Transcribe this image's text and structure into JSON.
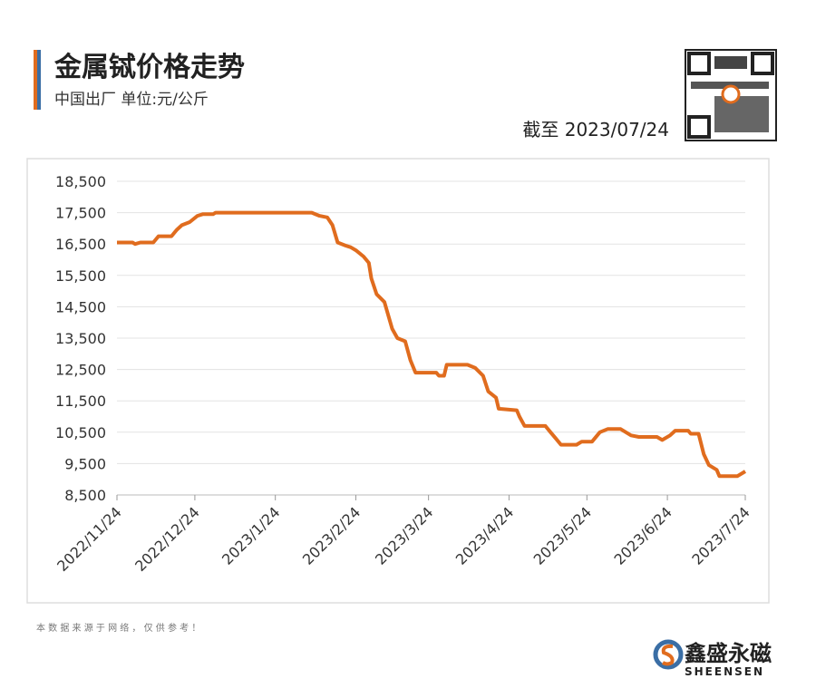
{
  "header": {
    "title": "金属铽价格走势",
    "subtitle": "中国出厂  单位:元/公斤",
    "as_of": "截至 2023/07/24"
  },
  "chart_data": {
    "type": "line",
    "x": [
      "2022/11/24",
      "2022/11/30",
      "2022/12/1",
      "2022/12/3",
      "2022/12/8",
      "2022/12/10",
      "2022/12/15",
      "2022/12/17",
      "2022/12/19",
      "2022/12/22",
      "2022/12/25",
      "2022/12/27",
      "2022/12/31",
      "2023/1/1",
      "2023/2/7",
      "2023/2/10",
      "2023/2/13",
      "2023/2/15",
      "2023/2/17",
      "2023/2/20",
      "2023/2/22",
      "2023/2/24",
      "2023/2/27",
      "2023/3/1",
      "2023/3/2",
      "2023/3/4",
      "2023/3/7",
      "2023/3/10",
      "2023/3/12",
      "2023/3/15",
      "2023/3/17",
      "2023/3/19",
      "2023/3/27",
      "2023/3/28",
      "2023/3/30",
      "2023/3/31",
      "2023/4/8",
      "2023/4/11",
      "2023/4/14",
      "2023/4/16",
      "2023/4/19",
      "2023/4/20",
      "2023/4/27",
      "2023/4/28",
      "2023/4/30",
      "2023/5/8",
      "2023/5/10",
      "2023/5/12",
      "2023/5/14",
      "2023/5/20",
      "2023/5/22",
      "2023/5/26",
      "2023/5/29",
      "2023/6/1",
      "2023/6/6",
      "2023/6/10",
      "2023/6/13",
      "2023/6/20",
      "2023/6/22",
      "2023/6/25",
      "2023/6/27",
      "2023/7/2",
      "2023/7/3",
      "2023/7/6",
      "2023/7/8",
      "2023/7/10",
      "2023/7/13",
      "2023/7/14",
      "2023/7/21",
      "2023/7/24"
    ],
    "series": [
      {
        "name": "金属铽",
        "color": "#e06c1e",
        "values": [
          16550,
          16550,
          16500,
          16550,
          16550,
          16750,
          16750,
          16950,
          17100,
          17200,
          17400,
          17450,
          17450,
          17500,
          17500,
          17400,
          17350,
          17100,
          16550,
          16450,
          16400,
          16300,
          16100,
          15900,
          15400,
          14900,
          14650,
          13800,
          13500,
          13400,
          12800,
          12400,
          12400,
          12300,
          12300,
          12650,
          12650,
          12550,
          12300,
          11800,
          11600,
          11250,
          11200,
          11000,
          10700,
          10700,
          10500,
          10300,
          10100,
          10100,
          10200,
          10200,
          10500,
          10600,
          10600,
          10400,
          10350,
          10350,
          10250,
          10400,
          10550,
          10550,
          10450,
          10450,
          9800,
          9450,
          9300,
          9100,
          9100,
          9250
        ]
      }
    ],
    "xlim": [
      "2022/11/24",
      "2023/7/24"
    ],
    "xticks": [
      "2022/11/24",
      "2022/12/24",
      "2023/1/24",
      "2023/2/24",
      "2023/3/24",
      "2023/4/24",
      "2023/5/24",
      "2023/6/24",
      "2023/7/24"
    ],
    "ylim": [
      8500,
      18500
    ],
    "yticks": [
      {
        "value": 8500,
        "label": "8,500"
      },
      {
        "value": 9500,
        "label": "9,500"
      },
      {
        "value": 10500,
        "label": "10,500"
      },
      {
        "value": 11500,
        "label": "11,500"
      },
      {
        "value": 12500,
        "label": "12,500"
      },
      {
        "value": 13500,
        "label": "13,500"
      },
      {
        "value": 14500,
        "label": "14,500"
      },
      {
        "value": 15500,
        "label": "15,500"
      },
      {
        "value": 16500,
        "label": "16,500"
      },
      {
        "value": 17500,
        "label": "17,500"
      },
      {
        "value": 18500,
        "label": "18,500"
      }
    ],
    "grid": true
  },
  "footer": {
    "note": "本 数 据 来 源 于 网 络 ， 仅 供 参 考 ！",
    "brand": "鑫盛永磁",
    "brand_en": "SHEENSEN"
  }
}
